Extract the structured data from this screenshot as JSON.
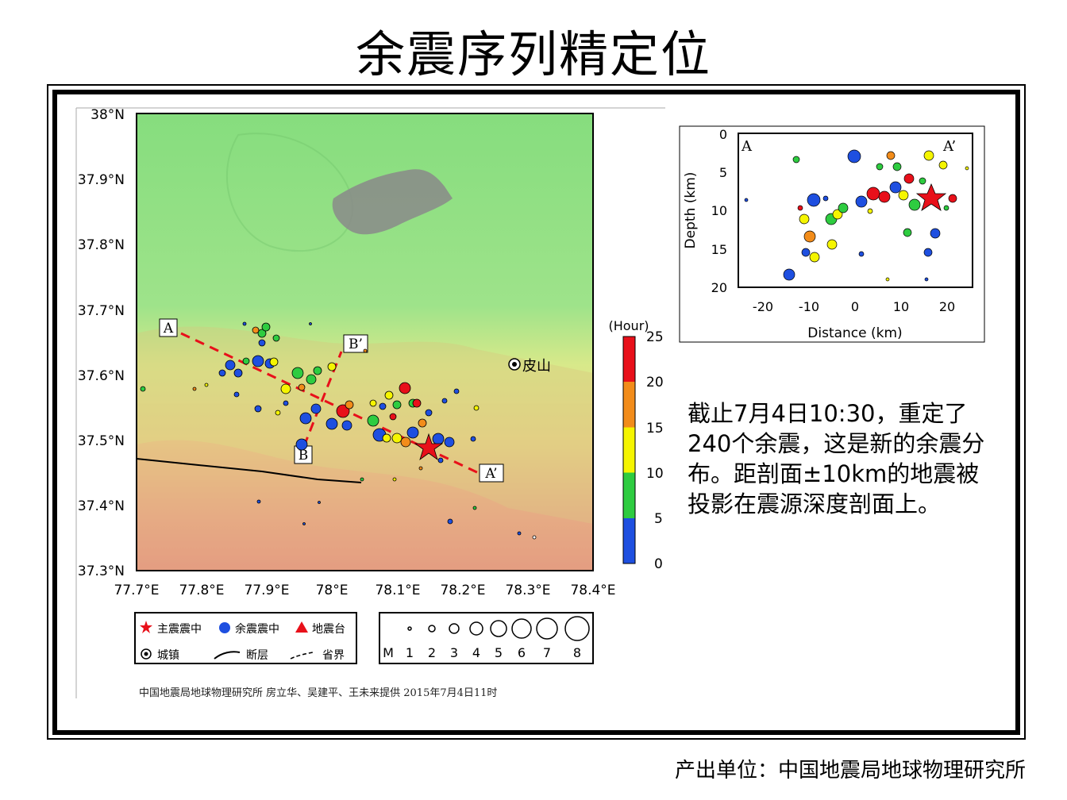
{
  "title": "余震序列精定位",
  "footer": "产出单位：中国地震局地球物理研究所",
  "description": "截止7月4日10:30，重定了240个余震，这是新的余震分布。距剖面±10km的地震被投影在震源深度剖面上。",
  "credit": "中国地震局地球物理研究所   房立华、吴建平、王未来提供   2015年7月4日11时",
  "map": {
    "lat_labels": [
      "38°N",
      "37.9°N",
      "37.8°N",
      "37.7°N",
      "37.6°N",
      "37.5°N",
      "37.4°N",
      "37.3°N"
    ],
    "lon_labels": [
      "77.7°E",
      "77.8°E",
      "77.9°E",
      "78°E",
      "78.1°E",
      "78.2°E",
      "78.3°E",
      "78.4°E"
    ],
    "profile_labels": {
      "a": "A",
      "a_prime": "A’",
      "b": "B",
      "b_prime": "B’"
    },
    "town_label": "皮山",
    "colors": {
      "early": "#1e4fe0",
      "mid1": "#2ecc40",
      "mid2": "#f5f500",
      "mid3": "#f28c1a",
      "late": "#e8101a"
    }
  },
  "colorbar": {
    "unit": "(Hour)",
    "ticks": [
      "25",
      "20",
      "15",
      "10",
      "5",
      "0"
    ]
  },
  "legend": {
    "mainshock": "主震震中",
    "aftershock": "余震震中",
    "station": "地震台",
    "town": "城镇",
    "fault": "断层",
    "border": "省界"
  },
  "magnitude_legend": {
    "label": "M",
    "values": [
      "1",
      "2",
      "3",
      "4",
      "5",
      "6",
      "7",
      "8"
    ]
  },
  "profile": {
    "corner_a": "A",
    "corner_a_prime": "A’",
    "xlabel": "Distance (km)",
    "ylabel": "Depth (km)",
    "xticks": [
      "-20",
      "-10",
      "0",
      "10",
      "20"
    ],
    "yticks": [
      "0",
      "5",
      "10",
      "15",
      "20"
    ]
  }
}
